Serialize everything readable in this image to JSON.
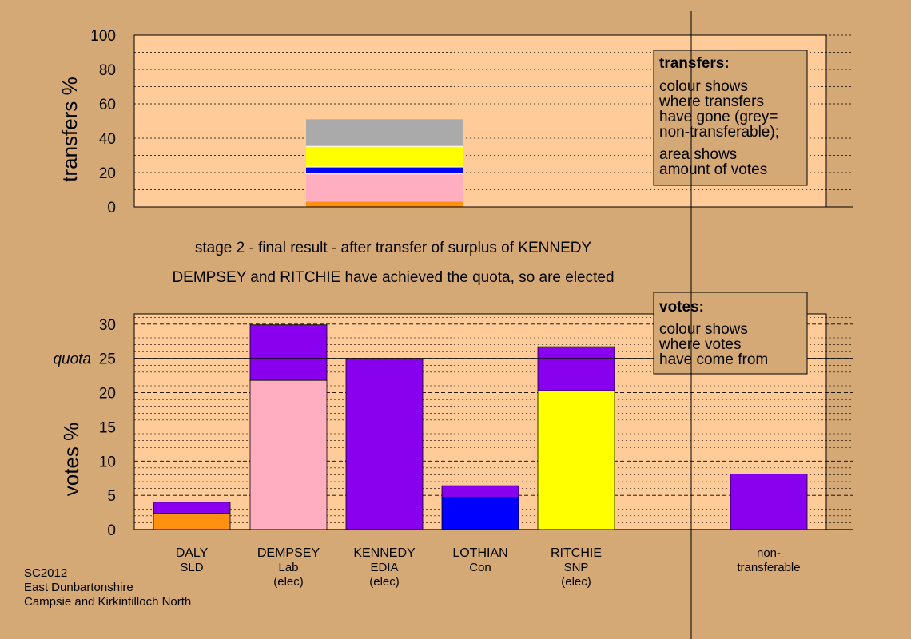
{
  "chart_data": [
    {
      "type": "bar",
      "subtype": "stacked",
      "ylabel": "transfers %",
      "ylim": [
        0,
        100
      ],
      "yticks": [
        0,
        20,
        40,
        60,
        80,
        100
      ],
      "gridlines": "dotted",
      "stack_segments_bottom_to_top": [
        {
          "color": "#ff9010",
          "value": 3
        },
        {
          "color": "#ffaec0",
          "value": 16
        },
        {
          "color": "#ffffff",
          "value": 0.5
        },
        {
          "color": "#0000ff",
          "value": 3.5
        },
        {
          "color": "#ffffff",
          "value": 0.5
        },
        {
          "color": "#ffff00",
          "value": 11.5
        },
        {
          "color": "#ffffff",
          "value": 0.5
        },
        {
          "color": "#aaaaaa",
          "value": 15.5
        }
      ],
      "legend": {
        "title": "transfers:",
        "lines1": [
          "colour shows",
          "where transfers",
          "have gone (grey=",
          "non-transferable);"
        ],
        "lines2": [
          "area shows",
          "amount of votes"
        ]
      }
    },
    {
      "type": "bar",
      "subtype": "stacked",
      "ylabel": "votes %",
      "ylim": [
        0,
        31.5
      ],
      "yticks": [
        0,
        5,
        10,
        15,
        20,
        25,
        30
      ],
      "quota": {
        "label": "quota",
        "value": 25
      },
      "gridlines": "dotted",
      "categories": [
        {
          "name": "DALY",
          "party": "SLD",
          "note": ""
        },
        {
          "name": "DEMPSEY",
          "party": "Lab",
          "note": "(elec)"
        },
        {
          "name": "KENNEDY",
          "party": "EDIA",
          "note": "(elec)"
        },
        {
          "name": "LOTHIAN",
          "party": "Con",
          "note": ""
        },
        {
          "name": "RITCHIE",
          "party": "SNP",
          "note": "(elec)"
        },
        {
          "name": "non-",
          "party": "transferable",
          "note": ""
        }
      ],
      "series": [
        {
          "color": "#ff9010",
          "values": [
            2.4,
            0,
            0,
            0,
            0,
            0
          ]
        },
        {
          "color": "#ffaec0",
          "values": [
            0,
            21.8,
            0,
            0,
            0,
            0
          ]
        },
        {
          "color": "#0000ff",
          "values": [
            0,
            0,
            0,
            4.7,
            0,
            0
          ]
        },
        {
          "color": "#ffff00",
          "values": [
            0,
            0,
            0,
            0,
            20.3,
            0
          ]
        },
        {
          "color": "#8800ee",
          "values": [
            1.6,
            8.1,
            25,
            1.7,
            6.4,
            8.1
          ]
        }
      ],
      "legend": {
        "title": "votes:",
        "lines": [
          "colour shows",
          "where votes",
          "have come from"
        ]
      }
    }
  ],
  "captions": {
    "line1": "stage 2 - final result - after transfer of surplus of KENNEDY",
    "line2": "DEMPSEY and RITCHIE have achieved the quota, so are elected"
  },
  "footer": {
    "line1": "SC2012",
    "line2": "East Dunbartonshire",
    "line3": "Campsie and Kirkintilloch North"
  },
  "colors": {
    "background": "#d4a976",
    "plot_fill": "#ffcc99",
    "legend_fill": "#d4a976"
  }
}
